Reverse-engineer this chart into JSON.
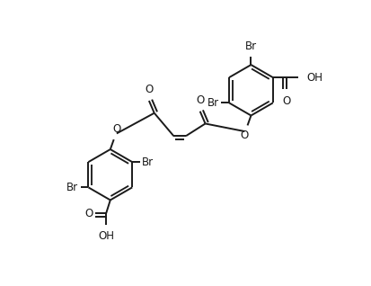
{
  "bg_color": "#ffffff",
  "line_color": "#1a1a1a",
  "line_width": 1.4,
  "font_size": 8.5,
  "figsize": [
    4.14,
    3.18
  ],
  "dpi": 100,
  "xlim": [
    0,
    10.5
  ],
  "ylim": [
    0,
    8.0
  ]
}
